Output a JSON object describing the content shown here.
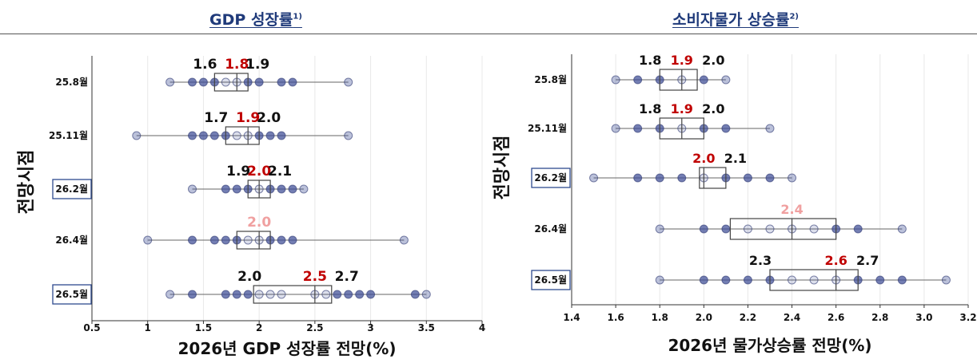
{
  "panels": [
    {
      "title": "GDP 성장률",
      "title_note": "1)"
    },
    {
      "title": "소비자물가 상승률",
      "title_note": "2)"
    }
  ],
  "chart_data": [
    {
      "type": "box",
      "title": "GDP 성장률",
      "title_note": "1)",
      "xlabel": "2026년  GDP  성장률  전망(%)",
      "ylabel": "전망시점",
      "xlim": [
        0.5,
        4
      ],
      "xticks": [
        "0.5",
        "1",
        "1.5",
        "2",
        "2.5",
        "3",
        "3.5",
        "4"
      ],
      "xtick_values": [
        0.5,
        1,
        1.5,
        2,
        2.5,
        3,
        3.5,
        4
      ],
      "categories": [
        "25.8월",
        "25.11월",
        "26.2월",
        "26.4월",
        "26.5월"
      ],
      "highlighted_categories": [
        "26.2월",
        "26.5월"
      ],
      "grid": "vertical",
      "colors": {
        "point": "#3d4c96",
        "box": "#444444",
        "median_label": "#c00000",
        "median_label_faded": "#f0a0a0",
        "label": "#111111"
      },
      "series": [
        {
          "category": "25.8월",
          "min": 1.2,
          "q1": 1.6,
          "median": 1.8,
          "q3": 1.9,
          "max": 2.8,
          "points": [
            1.2,
            1.4,
            1.5,
            1.6,
            1.7,
            1.8,
            1.9,
            2.0,
            2.2,
            2.3,
            2.8
          ],
          "labels": [
            {
              "text": "1.6",
              "value": 1.6,
              "role": "q1"
            },
            {
              "text": "1.8",
              "value": 1.8,
              "role": "median"
            },
            {
              "text": "1.9",
              "value": 1.9,
              "role": "q3"
            }
          ]
        },
        {
          "category": "25.11월",
          "min": 0.9,
          "q1": 1.7,
          "median": 1.9,
          "q3": 2.0,
          "max": 2.8,
          "points": [
            0.9,
            1.4,
            1.5,
            1.6,
            1.7,
            1.8,
            1.9,
            2.0,
            2.1,
            2.2,
            2.8
          ],
          "labels": [
            {
              "text": "1.7",
              "value": 1.7,
              "role": "q1"
            },
            {
              "text": "1.9",
              "value": 1.9,
              "role": "median"
            },
            {
              "text": "2.0",
              "value": 2.0,
              "role": "q3"
            }
          ]
        },
        {
          "category": "26.2월",
          "min": 1.4,
          "q1": 1.9,
          "median": 2.0,
          "q3": 2.1,
          "max": 2.4,
          "points": [
            1.4,
            1.7,
            1.8,
            1.9,
            2.0,
            2.1,
            2.2,
            2.3,
            2.4
          ],
          "labels": [
            {
              "text": "1.9",
              "value": 1.9,
              "role": "q1"
            },
            {
              "text": "2.0",
              "value": 2.0,
              "role": "median"
            },
            {
              "text": "2.1",
              "value": 2.1,
              "role": "q3"
            }
          ]
        },
        {
          "category": "26.4월",
          "min": 1.0,
          "q1": 1.8,
          "median": 2.0,
          "q3": 2.1,
          "max": 3.3,
          "points": [
            1.0,
            1.4,
            1.6,
            1.7,
            1.8,
            1.9,
            2.0,
            2.1,
            2.2,
            2.3,
            3.3
          ],
          "labels": [
            {
              "text": "2.0",
              "value": 2.0,
              "role": "median_faded"
            }
          ]
        },
        {
          "category": "26.5월",
          "min": 1.2,
          "q1": 1.95,
          "median": 2.5,
          "q3": 2.65,
          "max": 3.5,
          "points": [
            1.2,
            1.4,
            1.7,
            1.8,
            1.9,
            2.0,
            2.1,
            2.2,
            2.5,
            2.6,
            2.7,
            2.8,
            2.9,
            3.0,
            3.4,
            3.5
          ],
          "labels": [
            {
              "text": "2.0",
              "value": 2.0,
              "role": "q1"
            },
            {
              "text": "2.5",
              "value": 2.5,
              "role": "median"
            },
            {
              "text": "2.7",
              "value": 2.7,
              "role": "q3"
            }
          ]
        }
      ]
    },
    {
      "type": "box",
      "title": "소비자물가 상승률",
      "title_note": "2)",
      "xlabel": "2026년 물가상승률 전망(%)",
      "ylabel": "전망시점",
      "xlim": [
        1.4,
        3.2
      ],
      "xticks": [
        "1.4",
        "1.6",
        "1.8",
        "2.0",
        "2.2",
        "2.4",
        "2.6",
        "2.8",
        "3.0",
        "3.2"
      ],
      "xtick_values": [
        1.4,
        1.6,
        1.8,
        2.0,
        2.2,
        2.4,
        2.6,
        2.8,
        3.0,
        3.2
      ],
      "categories": [
        "25.8월",
        "25.11월",
        "26.2월",
        "26.4월",
        "26.5월"
      ],
      "highlighted_categories": [
        "26.2월",
        "26.5월"
      ],
      "grid": "vertical",
      "colors": {
        "point": "#3d4c96",
        "box": "#444444",
        "median_label": "#c00000",
        "median_label_faded": "#f0a0a0",
        "label": "#111111"
      },
      "series": [
        {
          "category": "25.8월",
          "min": 1.6,
          "q1": 1.8,
          "median": 1.9,
          "q3": 1.97,
          "max": 2.1,
          "points": [
            1.6,
            1.7,
            1.8,
            1.9,
            2.0,
            2.1
          ],
          "labels": [
            {
              "text": "1.8",
              "value": 1.8,
              "role": "q1"
            },
            {
              "text": "1.9",
              "value": 1.9,
              "role": "median"
            },
            {
              "text": "2.0",
              "value": 2.0,
              "role": "q3"
            }
          ]
        },
        {
          "category": "25.11월",
          "min": 1.6,
          "q1": 1.8,
          "median": 1.9,
          "q3": 2.0,
          "max": 2.3,
          "points": [
            1.6,
            1.7,
            1.8,
            1.9,
            2.0,
            2.1,
            2.3
          ],
          "labels": [
            {
              "text": "1.8",
              "value": 1.8,
              "role": "q1"
            },
            {
              "text": "1.9",
              "value": 1.9,
              "role": "median"
            },
            {
              "text": "2.0",
              "value": 2.0,
              "role": "q3"
            }
          ]
        },
        {
          "category": "26.2월",
          "min": 1.5,
          "q1": 1.98,
          "median": 2.0,
          "q3": 2.1,
          "max": 2.4,
          "points": [
            1.5,
            1.7,
            1.8,
            1.9,
            2.0,
            2.1,
            2.2,
            2.3,
            2.4
          ],
          "labels": [
            {
              "text": "2.0",
              "value": 2.0,
              "role": "median"
            },
            {
              "text": "2.1",
              "value": 2.1,
              "role": "q3"
            }
          ]
        },
        {
          "category": "26.4월",
          "min": 1.8,
          "q1": 2.12,
          "median": 2.4,
          "q3": 2.6,
          "max": 2.9,
          "points": [
            1.8,
            2.0,
            2.1,
            2.2,
            2.3,
            2.4,
            2.5,
            2.6,
            2.7,
            2.9
          ],
          "labels": [
            {
              "text": "2.4",
              "value": 2.4,
              "role": "median_faded"
            }
          ]
        },
        {
          "category": "26.5월",
          "min": 1.8,
          "q1": 2.3,
          "median": 2.6,
          "q3": 2.7,
          "max": 3.1,
          "points": [
            1.8,
            2.0,
            2.1,
            2.2,
            2.3,
            2.4,
            2.5,
            2.6,
            2.7,
            2.8,
            2.9,
            3.1
          ],
          "labels": [
            {
              "text": "2.3",
              "value": 2.3,
              "role": "q1"
            },
            {
              "text": "2.6",
              "value": 2.6,
              "role": "median"
            },
            {
              "text": "2.7",
              "value": 2.7,
              "role": "q3"
            }
          ]
        }
      ]
    }
  ]
}
